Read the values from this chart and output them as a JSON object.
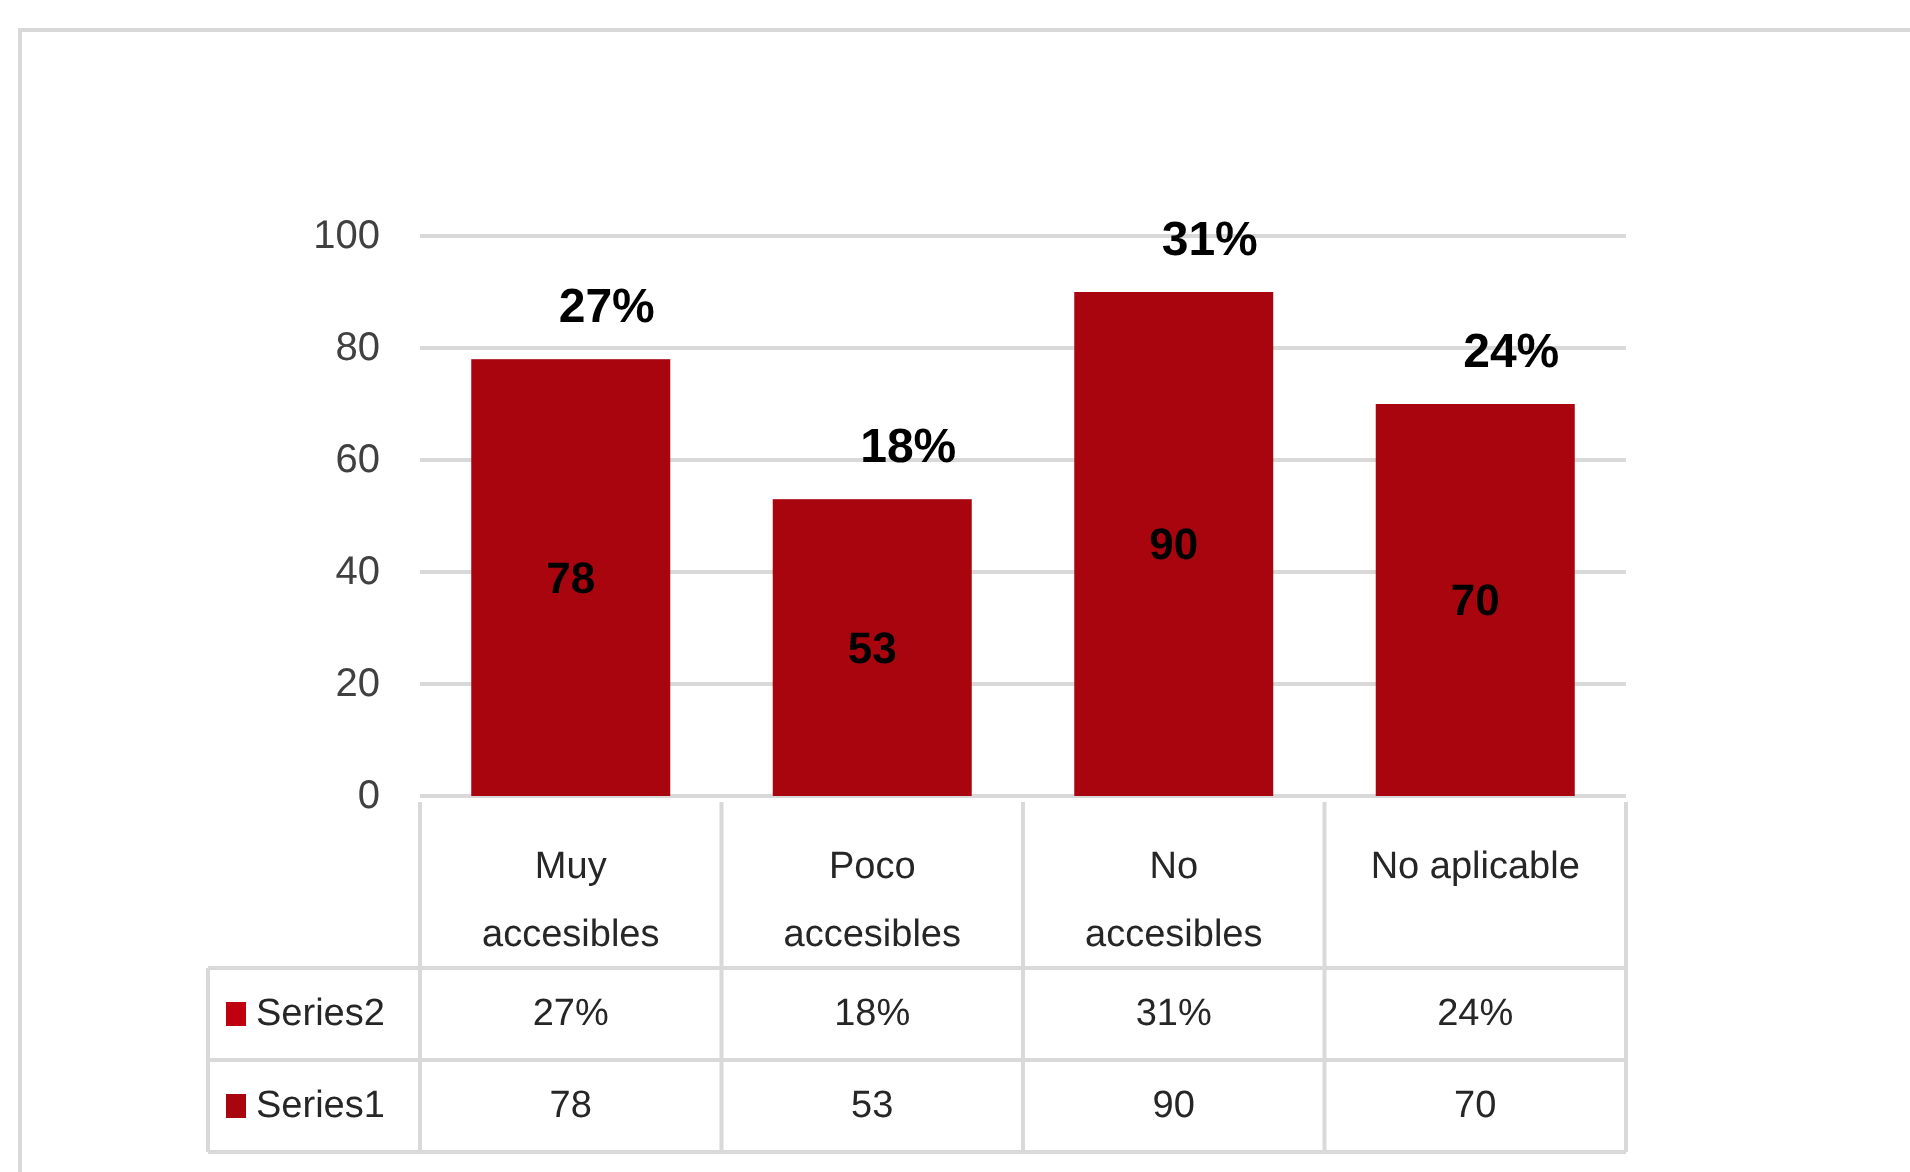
{
  "chart_data": {
    "type": "bar",
    "categories": [
      "Muy accesibles",
      "Poco accesibles",
      "No accesibles",
      "No aplicable"
    ],
    "series": [
      {
        "name": "Series1",
        "color": "#a8050f",
        "values": [
          78,
          53,
          90,
          70
        ],
        "value_labels": [
          "78",
          "53",
          "90",
          "70"
        ]
      },
      {
        "name": "Series2",
        "type": "other",
        "color": "#c0000f",
        "values": [
          null,
          null,
          null,
          null
        ],
        "value_labels": [
          "27%",
          "18%",
          "31%",
          "24%"
        ]
      }
    ],
    "ylim": [
      0,
      100
    ],
    "yticks": [
      0,
      20,
      40,
      60,
      80,
      100
    ],
    "grid": "y",
    "legend": "bottom left"
  }
}
